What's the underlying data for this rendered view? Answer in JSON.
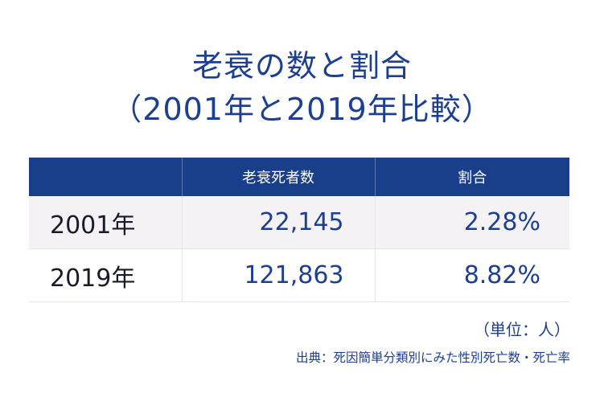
{
  "title": {
    "line1": "老衰の数と割合",
    "line2": "（2001年と2019年比較）"
  },
  "table": {
    "headers": [
      "",
      "老衰死者数",
      "割合"
    ],
    "rows": [
      {
        "year": "2001年",
        "count": "22,145",
        "rate": "2.28%"
      },
      {
        "year": "2019年",
        "count": "121,863",
        "rate": "8.82%"
      }
    ]
  },
  "unit_note": "（単位：人）",
  "source_note": "出典：死因簡単分類別にみた性別死亡数・死亡率",
  "colors": {
    "accent": "#1c3f8f",
    "header_bg": "#1a3f8a",
    "row_shade": "#f4f2f5"
  }
}
